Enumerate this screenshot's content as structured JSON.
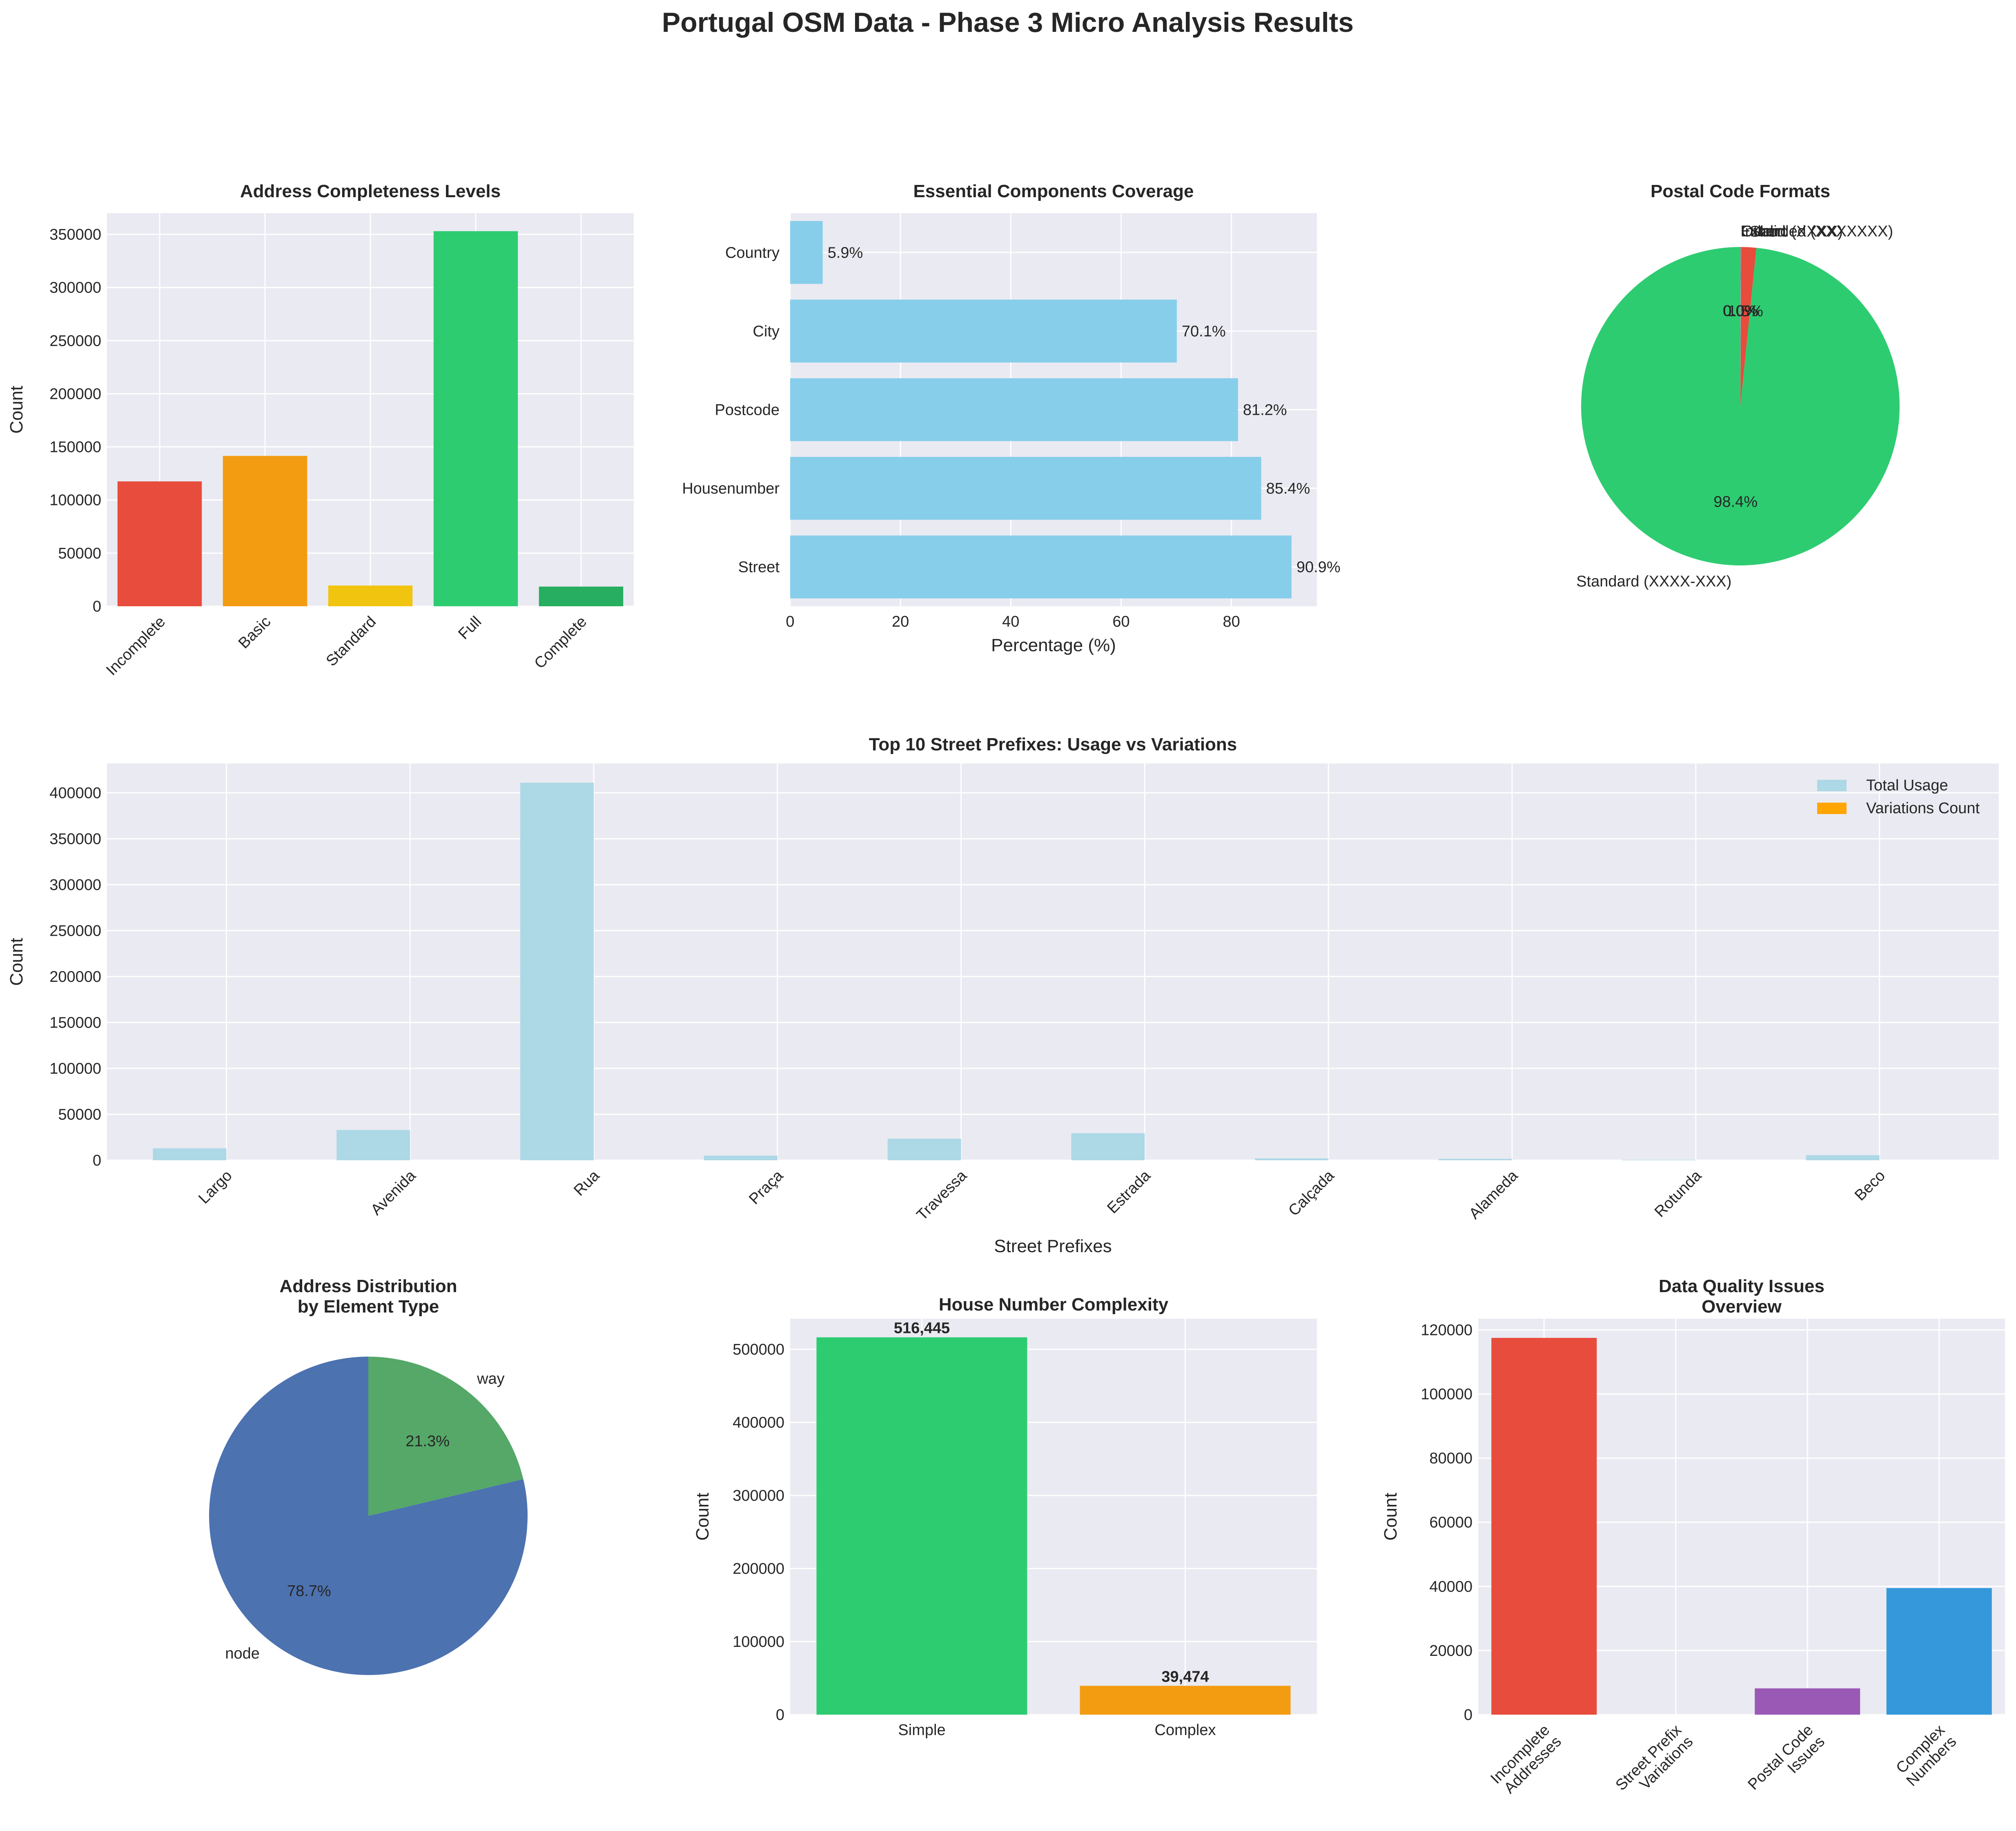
{
  "figure": {
    "title": "Portugal OSM Data - Phase 3 Micro Analysis Results"
  },
  "chart_data": [
    {
      "id": "completeness",
      "type": "bar",
      "title": "Address Completeness Levels",
      "xlabel": "",
      "ylabel": "Count",
      "categories": [
        "Incomplete",
        "Basic",
        "Standard",
        "Full",
        "Complete"
      ],
      "values": [
        117500,
        141500,
        19500,
        353000,
        18500
      ],
      "colors": [
        "#e74c3c",
        "#f39c12",
        "#f1c40f",
        "#2ecc71",
        "#27ae60"
      ],
      "ylim": [
        0,
        370000
      ],
      "yticks": [
        0,
        50000,
        100000,
        150000,
        200000,
        250000,
        300000,
        350000
      ],
      "grid": true
    },
    {
      "id": "coverage",
      "type": "bar",
      "orientation": "horizontal",
      "title": "Essential Components Coverage",
      "xlabel": "Percentage (%)",
      "ylabel": "",
      "categories": [
        "Street",
        "Housenumber",
        "Postcode",
        "City",
        "Country"
      ],
      "values": [
        90.9,
        85.4,
        81.2,
        70.1,
        5.9
      ],
      "value_labels": [
        "90.9%",
        "85.4%",
        "81.2%",
        "70.1%",
        "5.9%"
      ],
      "color": "#87ceeb",
      "xlim": [
        0,
        95.5
      ],
      "xticks": [
        0,
        20,
        40,
        60,
        80
      ],
      "grid": true
    },
    {
      "id": "postal",
      "type": "pie",
      "title": "Postal Code Formats",
      "slices": [
        {
          "label": "Standard (XXXX-XXX)",
          "value": 98.4,
          "pct_label": "98.4%",
          "color": "#2ecc71"
        },
        {
          "label": "Short (XXXX)",
          "value": 1.5,
          "pct_label": "1.5%",
          "color": "#e74c3c"
        },
        {
          "label": "Other",
          "value": 0.05,
          "pct_label": "0.0%",
          "color": "#3498db"
        },
        {
          "label": "Invalid",
          "value": 0.03,
          "pct_label": "0.0%",
          "color": "#9b59b6"
        },
        {
          "label": "Extended (XXXXXXX)",
          "value": 0.02,
          "pct_label": "0.0%",
          "color": "#f39c12"
        }
      ],
      "start_angle": 90
    },
    {
      "id": "prefixes",
      "type": "bar",
      "title": "Top 10 Street Prefixes: Usage vs Variations",
      "xlabel": "Street Prefixes",
      "ylabel": "Count",
      "categories": [
        "Largo",
        "Avenida",
        "Rua",
        "Praça",
        "Travessa",
        "Estrada",
        "Calçada",
        "Alameda",
        "Rotunda",
        "Beco"
      ],
      "series": [
        {
          "name": "Total Usage",
          "color": "#add8e6",
          "values": [
            13000,
            33000,
            411000,
            5000,
            23500,
            29500,
            2000,
            1500,
            500,
            5500
          ]
        },
        {
          "name": "Variations Count",
          "color": "#ffa500",
          "values": [
            0,
            0,
            0,
            0,
            0,
            0,
            0,
            0,
            0,
            0
          ]
        }
      ],
      "ylim": [
        0,
        432000
      ],
      "yticks": [
        0,
        50000,
        100000,
        150000,
        200000,
        250000,
        300000,
        350000,
        400000
      ],
      "legend": "top-right",
      "grid": true
    },
    {
      "id": "elements",
      "type": "pie",
      "title": "Address Distribution\nby Element Type",
      "slices": [
        {
          "label": "node",
          "value": 78.7,
          "pct_label": "78.7%",
          "color": "#4c72b0"
        },
        {
          "label": "way",
          "value": 21.3,
          "pct_label": "21.3%",
          "color": "#55a868"
        }
      ],
      "start_angle": 90
    },
    {
      "id": "housenum",
      "type": "bar",
      "title": "House Number Complexity",
      "xlabel": "",
      "ylabel": "Count",
      "categories": [
        "Simple",
        "Complex"
      ],
      "values": [
        516445,
        39474
      ],
      "value_labels": [
        "516,445",
        "39,474"
      ],
      "colors": [
        "#2ecc71",
        "#f39c12"
      ],
      "ylim": [
        0,
        542000
      ],
      "yticks": [
        0,
        100000,
        200000,
        300000,
        400000,
        500000
      ],
      "grid": true
    },
    {
      "id": "quality",
      "type": "bar",
      "title": "Data Quality Issues\nOverview",
      "xlabel": "",
      "ylabel": "Count",
      "categories": [
        "Incomplete\nAddresses",
        "Street Prefix\nVariations",
        "Postal Code\nIssues",
        "Complex\nNumbers"
      ],
      "values": [
        117500,
        0,
        8200,
        39474
      ],
      "colors": [
        "#e74c3c",
        "#f39c12",
        "#9b59b6",
        "#3498db"
      ],
      "ylim": [
        0,
        123500
      ],
      "yticks": [
        0,
        20000,
        40000,
        60000,
        80000,
        100000,
        120000
      ],
      "grid": true
    }
  ]
}
